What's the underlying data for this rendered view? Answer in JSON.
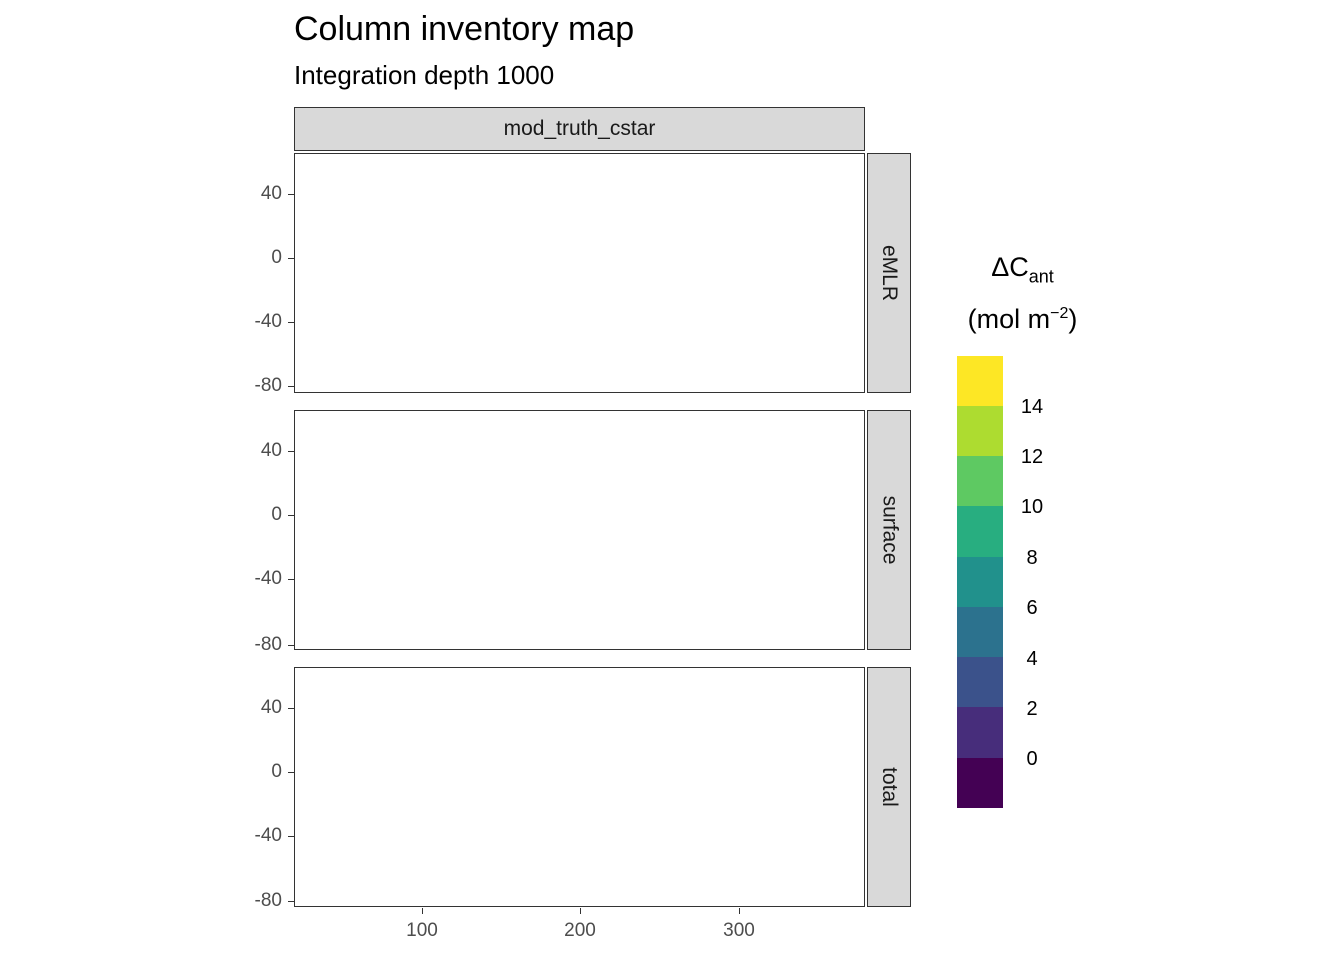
{
  "title": "Column inventory map",
  "subtitle": "Integration depth 1000",
  "column_strip": "mod_truth_cstar",
  "panels": [
    {
      "label": "eMLR"
    },
    {
      "label": "surface"
    },
    {
      "label": "total"
    }
  ],
  "y_ticks": [
    "40",
    "0",
    "-40",
    "-80"
  ],
  "x_ticks": [
    "100",
    "200",
    "300"
  ],
  "legend": {
    "title_main": "ΔC",
    "title_sub": "ant",
    "unit_pre": "(mol m",
    "unit_sup": "−2",
    "unit_post": ")",
    "labels": [
      "14",
      "12",
      "10",
      "8",
      "6",
      "4",
      "2",
      "0"
    ],
    "colors": [
      "#fde725",
      "#addc30",
      "#5ec962",
      "#28ae80",
      "#21918c",
      "#2c728e",
      "#3b528b",
      "#472d7b",
      "#440154"
    ]
  },
  "colors": {
    "land": "#cccccc",
    "panel_border": "#333333",
    "strip_bg": "#d9d9d9"
  }
}
